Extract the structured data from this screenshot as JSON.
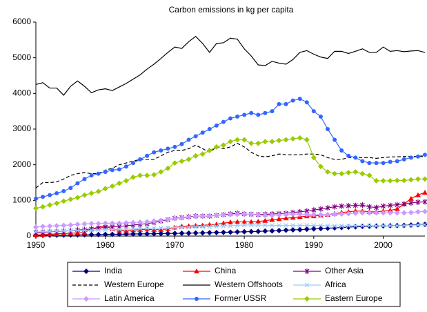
{
  "chart_data": {
    "type": "line",
    "title": "Carbon emissions in kg per capita",
    "x": [
      1950,
      1951,
      1952,
      1953,
      1954,
      1955,
      1956,
      1957,
      1958,
      1959,
      1960,
      1961,
      1962,
      1963,
      1964,
      1965,
      1966,
      1967,
      1968,
      1969,
      1970,
      1971,
      1972,
      1973,
      1974,
      1975,
      1976,
      1977,
      1978,
      1979,
      1980,
      1981,
      1982,
      1983,
      1984,
      1985,
      1986,
      1987,
      1988,
      1989,
      1990,
      1991,
      1992,
      1993,
      1994,
      1995,
      1996,
      1997,
      1998,
      1999,
      2000,
      2001,
      2002,
      2003,
      2004,
      2005,
      2006
    ],
    "xlim": [
      1950,
      2006
    ],
    "xticks": [
      1950,
      1960,
      1970,
      1980,
      1990,
      2000
    ],
    "ylim": [
      0,
      6000
    ],
    "yticks": [
      0,
      1000,
      2000,
      3000,
      4000,
      5000,
      6000
    ],
    "series": [
      {
        "name": "India",
        "color": "#000080",
        "marker": "diamond",
        "values": [
          20,
          22,
          24,
          26,
          28,
          30,
          33,
          36,
          38,
          40,
          45,
          48,
          50,
          55,
          58,
          60,
          63,
          66,
          70,
          73,
          75,
          80,
          83,
          86,
          90,
          95,
          100,
          105,
          110,
          115,
          120,
          125,
          130,
          140,
          145,
          155,
          165,
          175,
          180,
          190,
          200,
          210,
          220,
          230,
          240,
          250,
          260,
          270,
          275,
          280,
          285,
          290,
          295,
          300,
          310,
          320,
          330
        ]
      },
      {
        "name": "China",
        "color": "#ff0000",
        "marker": "triangle",
        "values": [
          30,
          40,
          50,
          60,
          70,
          80,
          90,
          100,
          200,
          250,
          280,
          200,
          160,
          160,
          170,
          180,
          190,
          180,
          180,
          200,
          240,
          270,
          280,
          290,
          300,
          320,
          330,
          360,
          390,
          400,
          400,
          400,
          410,
          430,
          460,
          480,
          500,
          520,
          540,
          560,
          560,
          580,
          600,
          630,
          660,
          680,
          700,
          700,
          680,
          680,
          700,
          720,
          760,
          900,
          1050,
          1150,
          1220
        ]
      },
      {
        "name": "Other Asia",
        "color": "#800080",
        "marker": "star",
        "values": [
          100,
          110,
          120,
          130,
          140,
          150,
          170,
          180,
          200,
          220,
          250,
          260,
          270,
          290,
          310,
          330,
          350,
          380,
          420,
          460,
          500,
          520,
          540,
          560,
          560,
          560,
          580,
          600,
          620,
          640,
          620,
          610,
          600,
          610,
          620,
          630,
          640,
          660,
          680,
          700,
          730,
          760,
          790,
          820,
          840,
          850,
          860,
          870,
          820,
          800,
          840,
          860,
          880,
          900,
          930,
          950,
          960
        ]
      },
      {
        "name": "Western Europe",
        "color": "#000000",
        "marker": "none",
        "dashed": true,
        "values": [
          1350,
          1500,
          1500,
          1520,
          1600,
          1700,
          1750,
          1780,
          1750,
          1750,
          1850,
          1900,
          2000,
          2050,
          2100,
          2150,
          2150,
          2150,
          2250,
          2350,
          2400,
          2400,
          2450,
          2550,
          2450,
          2350,
          2500,
          2450,
          2500,
          2600,
          2500,
          2350,
          2250,
          2220,
          2250,
          2300,
          2280,
          2280,
          2280,
          2300,
          2300,
          2280,
          2200,
          2150,
          2150,
          2200,
          2200,
          2200,
          2200,
          2180,
          2200,
          2220,
          2220,
          2230,
          2230,
          2230,
          2230
        ]
      },
      {
        "name": "Western Offshoots",
        "color": "#000000",
        "marker": "none",
        "values": [
          4250,
          4300,
          4150,
          4150,
          3950,
          4200,
          4350,
          4200,
          4020,
          4100,
          4130,
          4080,
          4180,
          4280,
          4400,
          4520,
          4680,
          4820,
          4980,
          5150,
          5300,
          5260,
          5450,
          5600,
          5400,
          5150,
          5400,
          5420,
          5550,
          5520,
          5250,
          5050,
          4800,
          4780,
          4900,
          4850,
          4820,
          4950,
          5150,
          5200,
          5100,
          5020,
          4980,
          5180,
          5180,
          5120,
          5180,
          5250,
          5150,
          5150,
          5300,
          5180,
          5200,
          5170,
          5190,
          5200,
          5150
        ]
      },
      {
        "name": "Africa",
        "color": "#99ccff",
        "marker": "x",
        "values": [
          120,
          125,
          130,
          140,
          145,
          150,
          155,
          160,
          165,
          170,
          180,
          185,
          190,
          195,
          200,
          210,
          215,
          220,
          225,
          230,
          240,
          245,
          250,
          255,
          260,
          265,
          270,
          280,
          290,
          300,
          310,
          310,
          310,
          305,
          300,
          300,
          300,
          300,
          300,
          300,
          300,
          295,
          290,
          285,
          285,
          290,
          290,
          290,
          290,
          285,
          290,
          290,
          290,
          295,
          300,
          310,
          320
        ]
      },
      {
        "name": "Latin America",
        "color": "#cc99ff",
        "marker": "diamond",
        "values": [
          250,
          270,
          280,
          290,
          300,
          310,
          330,
          340,
          350,
          350,
          360,
          360,
          360,
          370,
          380,
          390,
          400,
          420,
          440,
          470,
          490,
          510,
          530,
          550,
          560,
          570,
          580,
          590,
          600,
          610,
          620,
          610,
          590,
          580,
          580,
          590,
          600,
          610,
          610,
          610,
          600,
          600,
          600,
          610,
          620,
          630,
          640,
          650,
          650,
          650,
          650,
          650,
          650,
          650,
          660,
          680,
          690
        ]
      },
      {
        "name": "Former USSR",
        "color": "#3366ff",
        "marker": "circle",
        "values": [
          1050,
          1100,
          1150,
          1200,
          1260,
          1350,
          1480,
          1600,
          1700,
          1750,
          1800,
          1850,
          1870,
          1950,
          2050,
          2150,
          2250,
          2350,
          2400,
          2450,
          2500,
          2580,
          2700,
          2800,
          2900,
          3000,
          3100,
          3200,
          3300,
          3350,
          3400,
          3450,
          3400,
          3450,
          3500,
          3700,
          3700,
          3800,
          3850,
          3750,
          3500,
          3350,
          3000,
          2700,
          2400,
          2250,
          2200,
          2100,
          2050,
          2050,
          2050,
          2080,
          2100,
          2150,
          2200,
          2230,
          2280
        ]
      },
      {
        "name": "Eastern Europe",
        "color": "#99cc00",
        "marker": "diamond",
        "values": [
          780,
          820,
          870,
          920,
          980,
          1030,
          1080,
          1150,
          1200,
          1250,
          1330,
          1400,
          1480,
          1550,
          1650,
          1700,
          1700,
          1720,
          1800,
          1900,
          2050,
          2100,
          2150,
          2250,
          2300,
          2400,
          2500,
          2550,
          2650,
          2700,
          2700,
          2600,
          2600,
          2650,
          2650,
          2680,
          2700,
          2730,
          2750,
          2700,
          2200,
          1950,
          1800,
          1750,
          1750,
          1780,
          1800,
          1750,
          1700,
          1550,
          1550,
          1550,
          1560,
          1560,
          1580,
          1600,
          1600
        ]
      }
    ]
  }
}
